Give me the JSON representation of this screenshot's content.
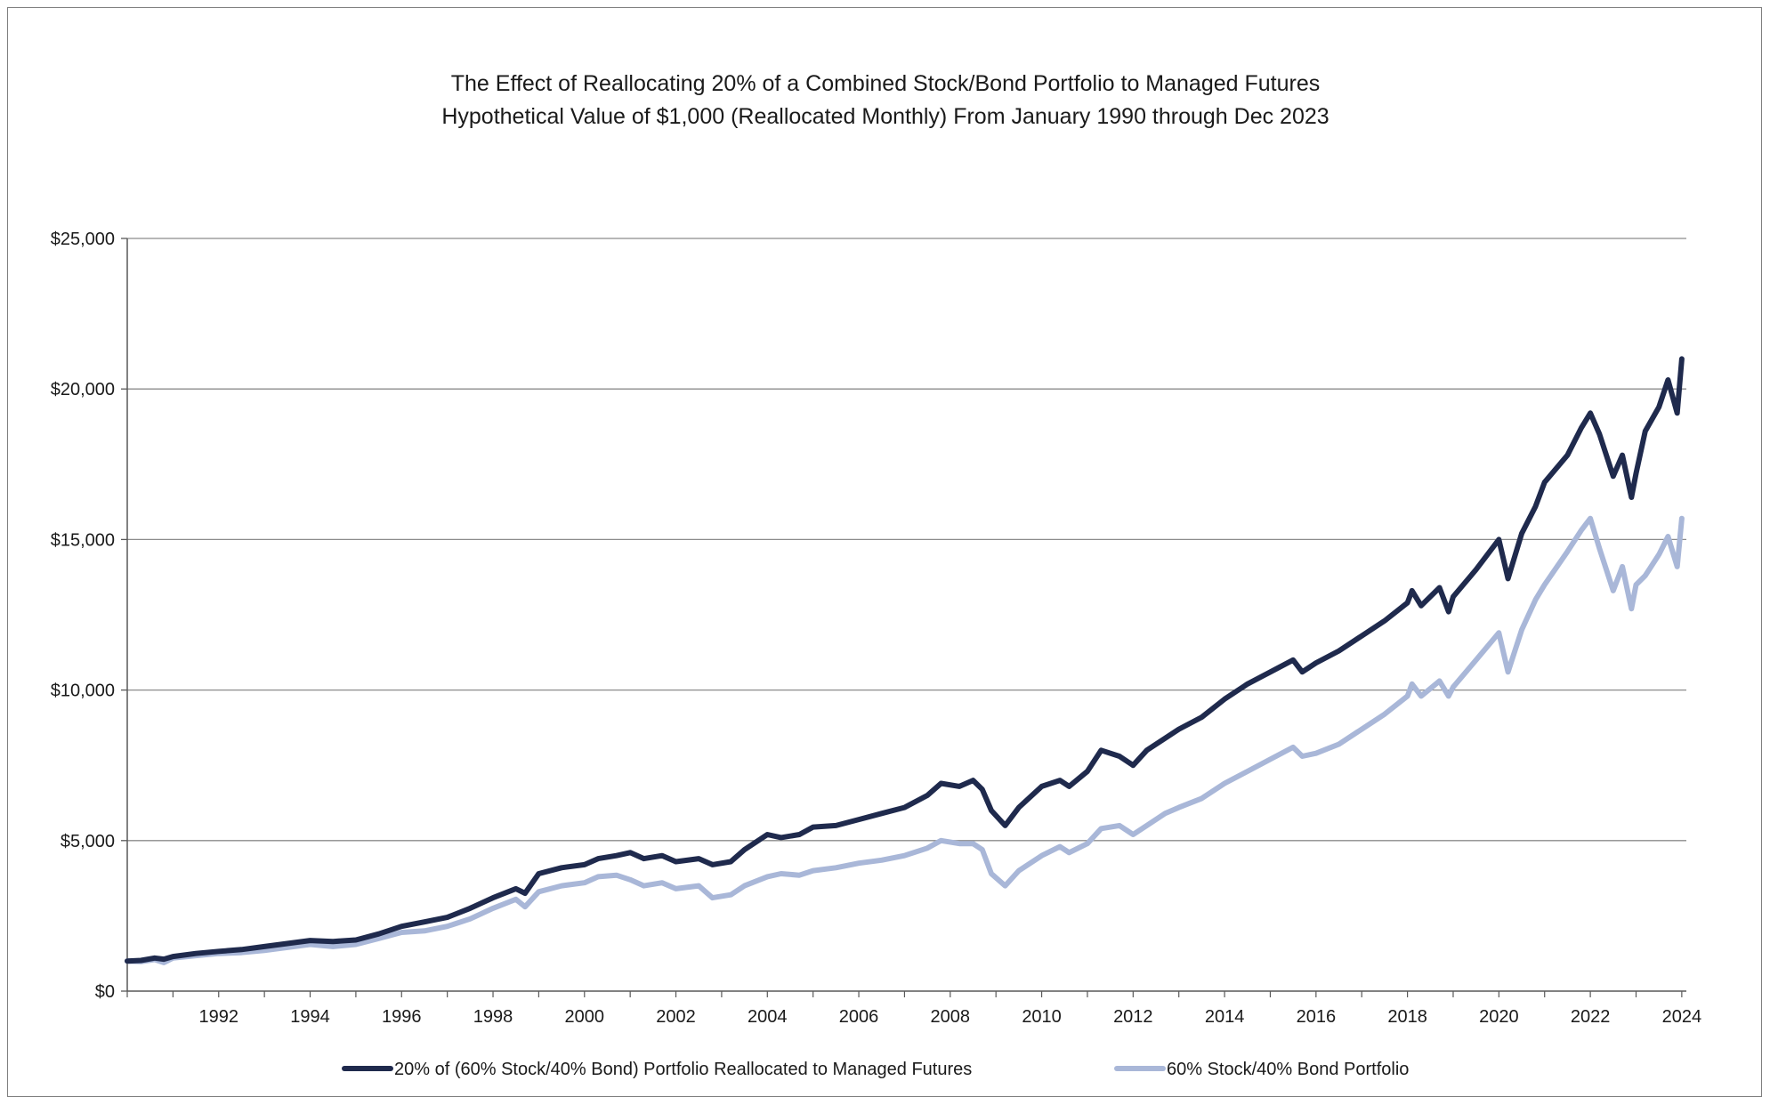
{
  "chart_data": {
    "type": "line",
    "title": "The Effect of Reallocating 20% of a Combined Stock/Bond Portfolio to Managed Futures",
    "subtitle": "Hypothetical Value of $1,000 (Reallocated Monthly) From January 1990 through Dec 2023",
    "xlabel": "",
    "ylabel": "",
    "xlim": [
      1990,
      2024.1
    ],
    "ylim": [
      0,
      25000
    ],
    "x_ticks": [
      1992,
      1994,
      1996,
      1998,
      2000,
      2002,
      2004,
      2006,
      2008,
      2010,
      2012,
      2014,
      2016,
      2018,
      2020,
      2022,
      2024
    ],
    "x_tick_labels": [
      "1992",
      "1994",
      "1996",
      "1998",
      "2000",
      "2002",
      "2004",
      "2006",
      "2008",
      "2010",
      "2012",
      "2014",
      "2016",
      "2018",
      "2020",
      "2022",
      "2024"
    ],
    "y_ticks": [
      0,
      5000,
      10000,
      15000,
      20000,
      25000
    ],
    "y_tick_labels": [
      "$0",
      "$5,000",
      "$10,000",
      "$15,000",
      "$20,000",
      "$25,000"
    ],
    "grid": "horizontal",
    "legend_position": "bottom",
    "series": [
      {
        "name": "20% of (60% Stock/40% Bond) Portfolio Reallocated to Managed Futures",
        "color": "#1f2a4d",
        "x": [
          1990.0,
          1990.3,
          1990.6,
          1990.8,
          1991.0,
          1991.5,
          1992.0,
          1992.5,
          1993.0,
          1993.5,
          1994.0,
          1994.5,
          1995.0,
          1995.5,
          1996.0,
          1996.5,
          1997.0,
          1997.5,
          1998.0,
          1998.5,
          1998.7,
          1999.0,
          1999.5,
          2000.0,
          2000.3,
          2000.7,
          2001.0,
          2001.3,
          2001.7,
          2002.0,
          2002.5,
          2002.8,
          2003.2,
          2003.5,
          2004.0,
          2004.3,
          2004.7,
          2005.0,
          2005.5,
          2006.0,
          2006.5,
          2007.0,
          2007.5,
          2007.8,
          2008.2,
          2008.5,
          2008.7,
          2008.9,
          2009.2,
          2009.5,
          2010.0,
          2010.4,
          2010.6,
          2011.0,
          2011.3,
          2011.7,
          2012.0,
          2012.3,
          2012.7,
          2013.0,
          2013.5,
          2014.0,
          2014.5,
          2015.0,
          2015.5,
          2015.7,
          2016.0,
          2016.5,
          2017.0,
          2017.5,
          2018.0,
          2018.1,
          2018.3,
          2018.7,
          2018.9,
          2019.0,
          2019.5,
          2020.0,
          2020.2,
          2020.5,
          2020.8,
          2021.0,
          2021.5,
          2021.8,
          2022.0,
          2022.2,
          2022.5,
          2022.7,
          2022.9,
          2023.0,
          2023.2,
          2023.5,
          2023.7,
          2023.9,
          2024.0
        ],
        "values": [
          1000,
          1020,
          1100,
          1060,
          1150,
          1250,
          1320,
          1380,
          1480,
          1580,
          1680,
          1650,
          1700,
          1900,
          2150,
          2300,
          2450,
          2750,
          3100,
          3400,
          3250,
          3900,
          4100,
          4200,
          4400,
          4500,
          4600,
          4400,
          4500,
          4300,
          4400,
          4200,
          4300,
          4700,
          5200,
          5100,
          5200,
          5450,
          5500,
          5700,
          5900,
          6100,
          6500,
          6900,
          6800,
          7000,
          6700,
          6000,
          5500,
          6100,
          6800,
          7000,
          6800,
          7300,
          8000,
          7800,
          7500,
          8000,
          8400,
          8700,
          9100,
          9700,
          10200,
          10600,
          11000,
          10600,
          10900,
          11300,
          11800,
          12300,
          12900,
          13300,
          12800,
          13400,
          12600,
          13100,
          14000,
          15000,
          13700,
          15200,
          16100,
          16900,
          17800,
          18700,
          19200,
          18500,
          17100,
          17800,
          16400,
          17200,
          18600,
          19400,
          20300,
          19200,
          21000
        ]
      },
      {
        "name": "60% Stock/40% Bond Portfolio",
        "color": "#a9b7d8",
        "x": [
          1990.0,
          1990.3,
          1990.6,
          1990.8,
          1991.0,
          1991.5,
          1992.0,
          1992.5,
          1993.0,
          1993.5,
          1994.0,
          1994.5,
          1995.0,
          1995.5,
          1996.0,
          1996.5,
          1997.0,
          1997.5,
          1998.0,
          1998.5,
          1998.7,
          1999.0,
          1999.5,
          2000.0,
          2000.3,
          2000.7,
          2001.0,
          2001.3,
          2001.7,
          2002.0,
          2002.5,
          2002.8,
          2003.2,
          2003.5,
          2004.0,
          2004.3,
          2004.7,
          2005.0,
          2005.5,
          2006.0,
          2006.5,
          2007.0,
          2007.5,
          2007.8,
          2008.2,
          2008.5,
          2008.7,
          2008.9,
          2009.2,
          2009.5,
          2010.0,
          2010.4,
          2010.6,
          2011.0,
          2011.3,
          2011.7,
          2012.0,
          2012.3,
          2012.7,
          2013.0,
          2013.5,
          2014.0,
          2014.5,
          2015.0,
          2015.5,
          2015.7,
          2016.0,
          2016.5,
          2017.0,
          2017.5,
          2018.0,
          2018.1,
          2018.3,
          2018.7,
          2018.9,
          2019.0,
          2019.5,
          2020.0,
          2020.2,
          2020.5,
          2020.8,
          2021.0,
          2021.5,
          2021.8,
          2022.0,
          2022.2,
          2022.5,
          2022.7,
          2022.9,
          2023.0,
          2023.2,
          2023.5,
          2023.7,
          2023.9,
          2024.0
        ],
        "values": [
          1000,
          980,
          1050,
          950,
          1100,
          1180,
          1250,
          1280,
          1350,
          1450,
          1550,
          1480,
          1550,
          1750,
          1950,
          2000,
          2150,
          2400,
          2750,
          3050,
          2800,
          3300,
          3500,
          3600,
          3800,
          3850,
          3700,
          3500,
          3600,
          3400,
          3500,
          3100,
          3200,
          3500,
          3800,
          3900,
          3850,
          4000,
          4100,
          4250,
          4350,
          4500,
          4750,
          5000,
          4900,
          4900,
          4700,
          3900,
          3500,
          4000,
          4500,
          4800,
          4600,
          4900,
          5400,
          5500,
          5200,
          5500,
          5900,
          6100,
          6400,
          6900,
          7300,
          7700,
          8100,
          7800,
          7900,
          8200,
          8700,
          9200,
          9800,
          10200,
          9800,
          10300,
          9800,
          10100,
          11000,
          11900,
          10600,
          12000,
          13000,
          13500,
          14600,
          15300,
          15700,
          14700,
          13300,
          14100,
          12700,
          13500,
          13800,
          14500,
          15100,
          14100,
          15700
        ]
      }
    ]
  }
}
